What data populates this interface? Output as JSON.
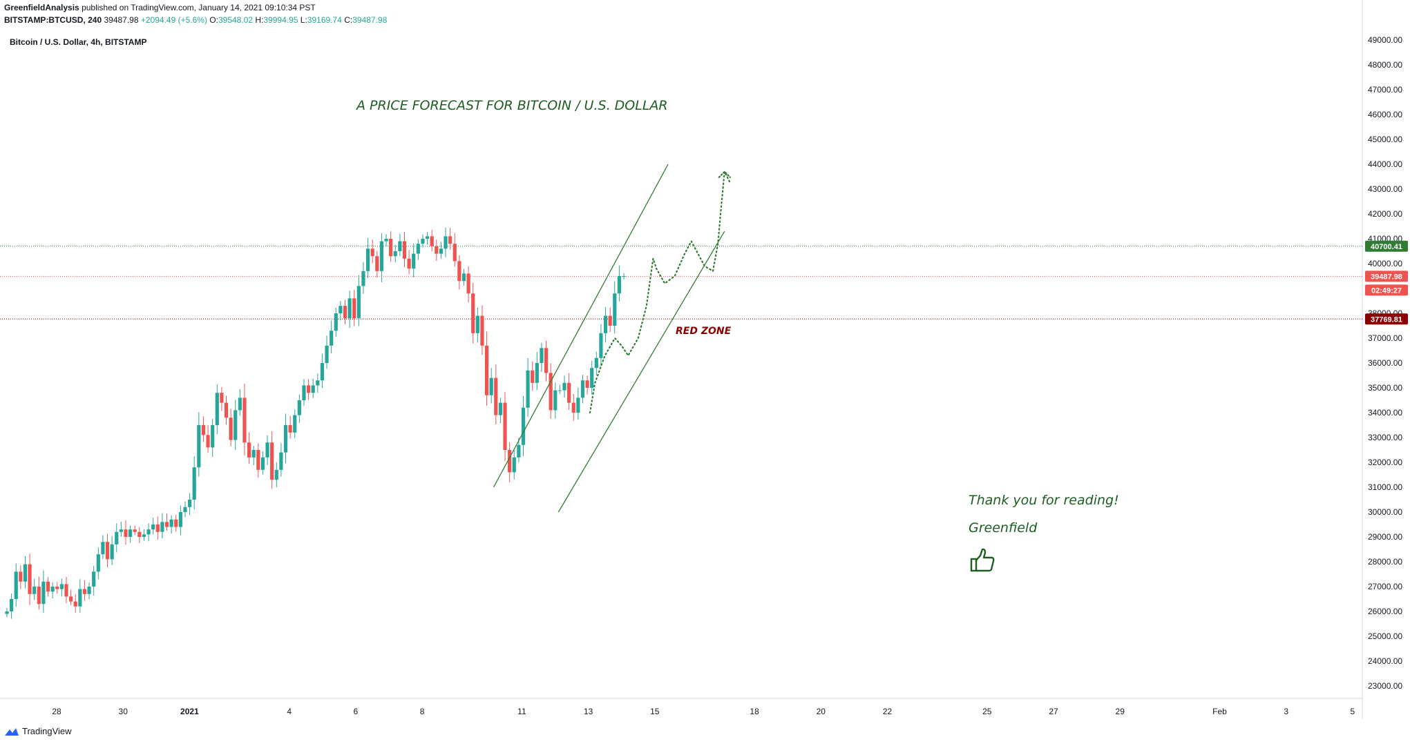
{
  "header": {
    "author": "GreenfieldAnalysis",
    "published": "published on TradingView.com, January 14, 2021 09:10:34 PST",
    "symbol": "BITSTAMP:BTCUSD, 240",
    "last": "39487.98",
    "change": "+2094.49 (+5.6%)",
    "o_label": "O:",
    "o": "39548.02",
    "h_label": "H:",
    "h": "39994.95",
    "l_label": "L:",
    "l": "39169.74",
    "c_label": "C:",
    "c": "39487.98"
  },
  "legend": "Bitcoin / U.S. Dollar, 4h, BITSTAMP",
  "notes": {
    "forecast": "A PRICE FORECAST FOR BITCOIN / U.S. DOLLAR",
    "red_zone": "RED ZONE",
    "thanks": "Thank you for reading!",
    "signature": "Greenfield",
    "thumb_icon": "thumbs-up-icon"
  },
  "footer": {
    "brand": "TradingView",
    "logo_icon": "tradingview-logo-icon"
  },
  "colors": {
    "up": "#26a69a",
    "down": "#ef5350",
    "annotation": "#1b5e20",
    "resistance": "#2e7d32",
    "price_line": "#ef5350",
    "support": "#8b0000"
  },
  "chart_data": {
    "type": "candlestick",
    "title": "Bitcoin / U.S. Dollar, 4h, BITSTAMP",
    "ylim": [
      22500,
      49500
    ],
    "y_ticks": [
      "23000.00",
      "24000.00",
      "25000.00",
      "26000.00",
      "27000.00",
      "28000.00",
      "29000.00",
      "30000.00",
      "31000.00",
      "32000.00",
      "33000.00",
      "34000.00",
      "35000.00",
      "36000.00",
      "37000.00",
      "38000.00",
      "39000.00",
      "40000.00",
      "41000.00",
      "42000.00",
      "43000.00",
      "44000.00",
      "45000.00",
      "46000.00",
      "47000.00",
      "48000.00",
      "49000.00"
    ],
    "x_ticks": [
      {
        "label": "28",
        "day": 0
      },
      {
        "label": "30",
        "day": 2
      },
      {
        "label": "2021",
        "day": 4
      },
      {
        "label": "4",
        "day": 7
      },
      {
        "label": "6",
        "day": 9
      },
      {
        "label": "8",
        "day": 11
      },
      {
        "label": "11",
        "day": 14
      },
      {
        "label": "13",
        "day": 16
      },
      {
        "label": "15",
        "day": 18
      },
      {
        "label": "18",
        "day": 21
      },
      {
        "label": "20",
        "day": 23
      },
      {
        "label": "22",
        "day": 25
      },
      {
        "label": "25",
        "day": 28
      },
      {
        "label": "27",
        "day": 30
      },
      {
        "label": "29",
        "day": 32
      },
      {
        "label": "Feb",
        "day": 35
      },
      {
        "label": "3",
        "day": 37
      },
      {
        "label": "5",
        "day": 39
      }
    ],
    "price_labels": [
      {
        "label": "40700.41",
        "value": 40700.41,
        "color": "#2e7d32"
      },
      {
        "label": "39487.98",
        "value": 39487.98,
        "color": "#ef5350"
      },
      {
        "label": "02:49:27",
        "value": null,
        "color": "#ef5350"
      },
      {
        "label": "37769.81",
        "value": 37769.81,
        "color": "#8b0000"
      }
    ],
    "candles_close": [
      26000,
      26500,
      27600,
      27200,
      27900,
      26700,
      27000,
      26300,
      27200,
      26800,
      27000,
      26900,
      27100,
      26600,
      26400,
      26200,
      26900,
      26700,
      27000,
      27600,
      28300,
      28800,
      28100,
      28700,
      29200,
      29300,
      29000,
      29300,
      29200,
      29000,
      29100,
      29300,
      29500,
      29200,
      29600,
      29400,
      29700,
      29400,
      30000,
      30200,
      30500,
      31800,
      33500,
      33100,
      32600,
      33500,
      34800,
      34400,
      33800,
      32900,
      34100,
      34600,
      32800,
      32200,
      32500,
      31700,
      32200,
      32800,
      31300,
      31700,
      32400,
      33500,
      33200,
      33900,
      34500,
      35100,
      34800,
      35100,
      35300,
      36000,
      36700,
      37300,
      38000,
      38300,
      37800,
      38600,
      37800,
      39100,
      39700,
      40600,
      40300,
      39700,
      40900,
      41000,
      40300,
      40500,
      40900,
      40200,
      39800,
      40400,
      40800,
      41000,
      41100,
      40700,
      40400,
      40600,
      41100,
      40800,
      40100,
      39300,
      39600,
      38800,
      37200,
      37900,
      36700,
      34700,
      35400,
      33900,
      34400,
      32500,
      31600,
      32200,
      32700,
      34200,
      35700,
      35200,
      36000,
      36600,
      35600,
      34100,
      34900,
      34900,
      35200,
      34400,
      34000,
      34600,
      35300,
      35000,
      35800,
      36200,
      37200,
      37900,
      37500,
      38800,
      39500,
      39500
    ],
    "channel": {
      "upper": [
        [
          13.15,
          31000
        ],
        [
          18.4,
          44000
        ]
      ],
      "lower": [
        [
          15.1,
          30000
        ],
        [
          20.1,
          41300
        ]
      ]
    },
    "forecast_path": [
      [
        16.05,
        34000
      ],
      [
        16.2,
        35200
      ],
      [
        16.5,
        36300
      ],
      [
        16.8,
        37000
      ],
      [
        17.0,
        36700
      ],
      [
        17.2,
        36300
      ],
      [
        17.5,
        37000
      ],
      [
        17.75,
        38300
      ],
      [
        17.95,
        40200
      ],
      [
        18.05,
        39800
      ],
      [
        18.3,
        39200
      ],
      [
        18.6,
        39500
      ],
      [
        18.9,
        40400
      ],
      [
        19.1,
        40900
      ],
      [
        19.3,
        40400
      ],
      [
        19.5,
        39900
      ],
      [
        19.75,
        39700
      ],
      [
        19.9,
        40800
      ],
      [
        20.0,
        42300
      ],
      [
        20.1,
        43700
      ],
      [
        20.25,
        43300
      ]
    ]
  }
}
